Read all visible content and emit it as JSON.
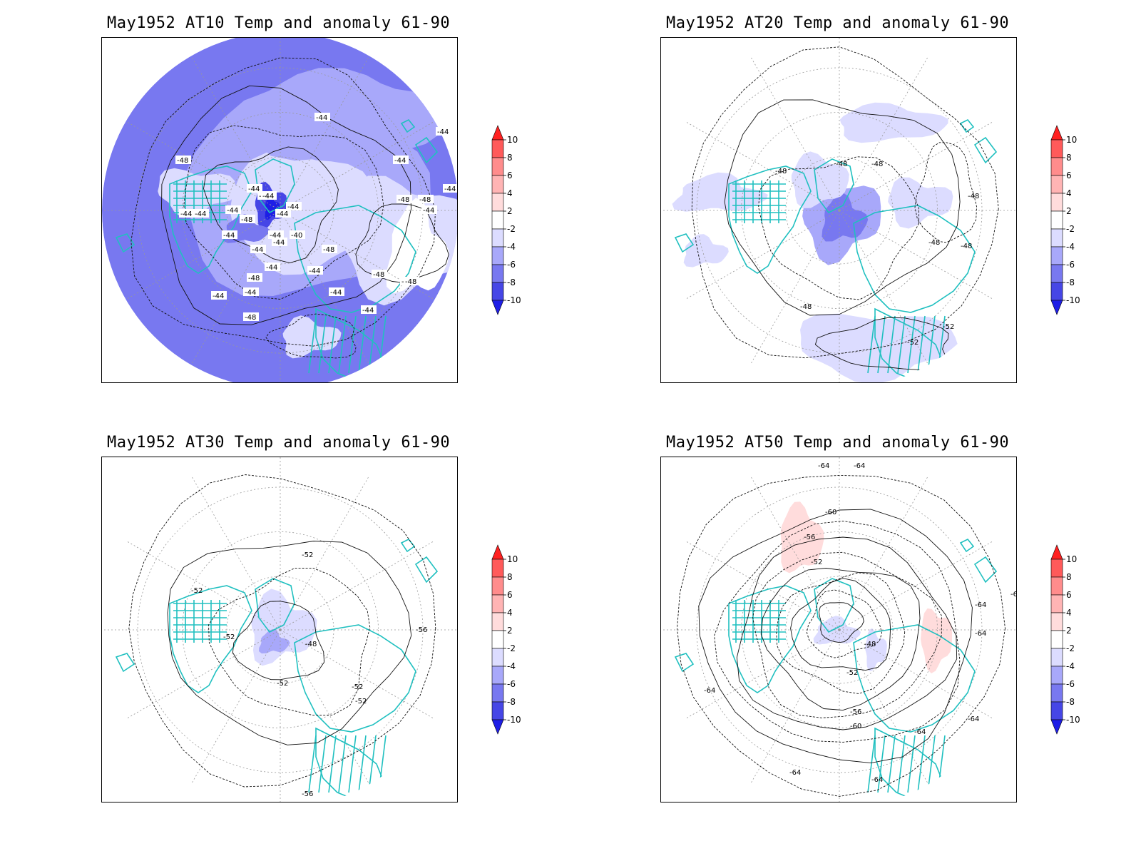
{
  "colors": {
    "coast": "#20c0c0",
    "contour": "#111111",
    "grid": "#999999",
    "frame": "#000000"
  },
  "colorbar": {
    "levels": [
      "10",
      "8",
      "6",
      "4",
      "2",
      "-2",
      "-4",
      "-6",
      "-8",
      "-10"
    ],
    "fills": [
      "#ff2020",
      "#ff5a5a",
      "#ff8c8c",
      "#ffb4b4",
      "#ffdcdc",
      "#ffffff",
      "#dcdcff",
      "#a8a8fa",
      "#7878f0",
      "#4646e6",
      "#1e1ee6"
    ]
  },
  "panels": [
    {
      "title": "May1952 AT10 Temp and anomaly 61-90",
      "contour_labels": [
        "-44",
        "-44",
        "-48",
        "-44",
        "-44",
        "-44",
        "-44",
        "-48",
        "-44",
        "-44",
        "-48",
        "-44",
        "-44",
        "-44",
        "-44",
        "-48",
        "-44",
        "-44",
        "-44",
        "-40",
        "-44",
        "-44",
        "-48",
        "-44",
        "-48",
        "-44",
        "-44",
        "-48",
        "-44",
        "-48",
        "-48",
        "-44",
        "-44",
        "-44"
      ]
    },
    {
      "title": "May1952 AT20 Temp and anomaly 61-90",
      "contour_labels": [
        "-48",
        "-48",
        "-48",
        "-48",
        "-48",
        "-48",
        "-48",
        "-52",
        "-52"
      ]
    },
    {
      "title": "May1952 AT30 Temp and anomaly 61-90",
      "contour_labels": [
        "-52",
        "-52",
        "-52",
        "-48",
        "-52",
        "-52",
        "-52",
        "-56",
        "-56"
      ]
    },
    {
      "title": "May1952 AT50 Temp and anomaly 61-90",
      "contour_labels": [
        "-64",
        "-64",
        "-60",
        "-56",
        "-52",
        "-48",
        "-52",
        "-56",
        "-60",
        "-64",
        "-64",
        "-64",
        "-64",
        "-64",
        "-64",
        "-64",
        "-64"
      ]
    }
  ]
}
